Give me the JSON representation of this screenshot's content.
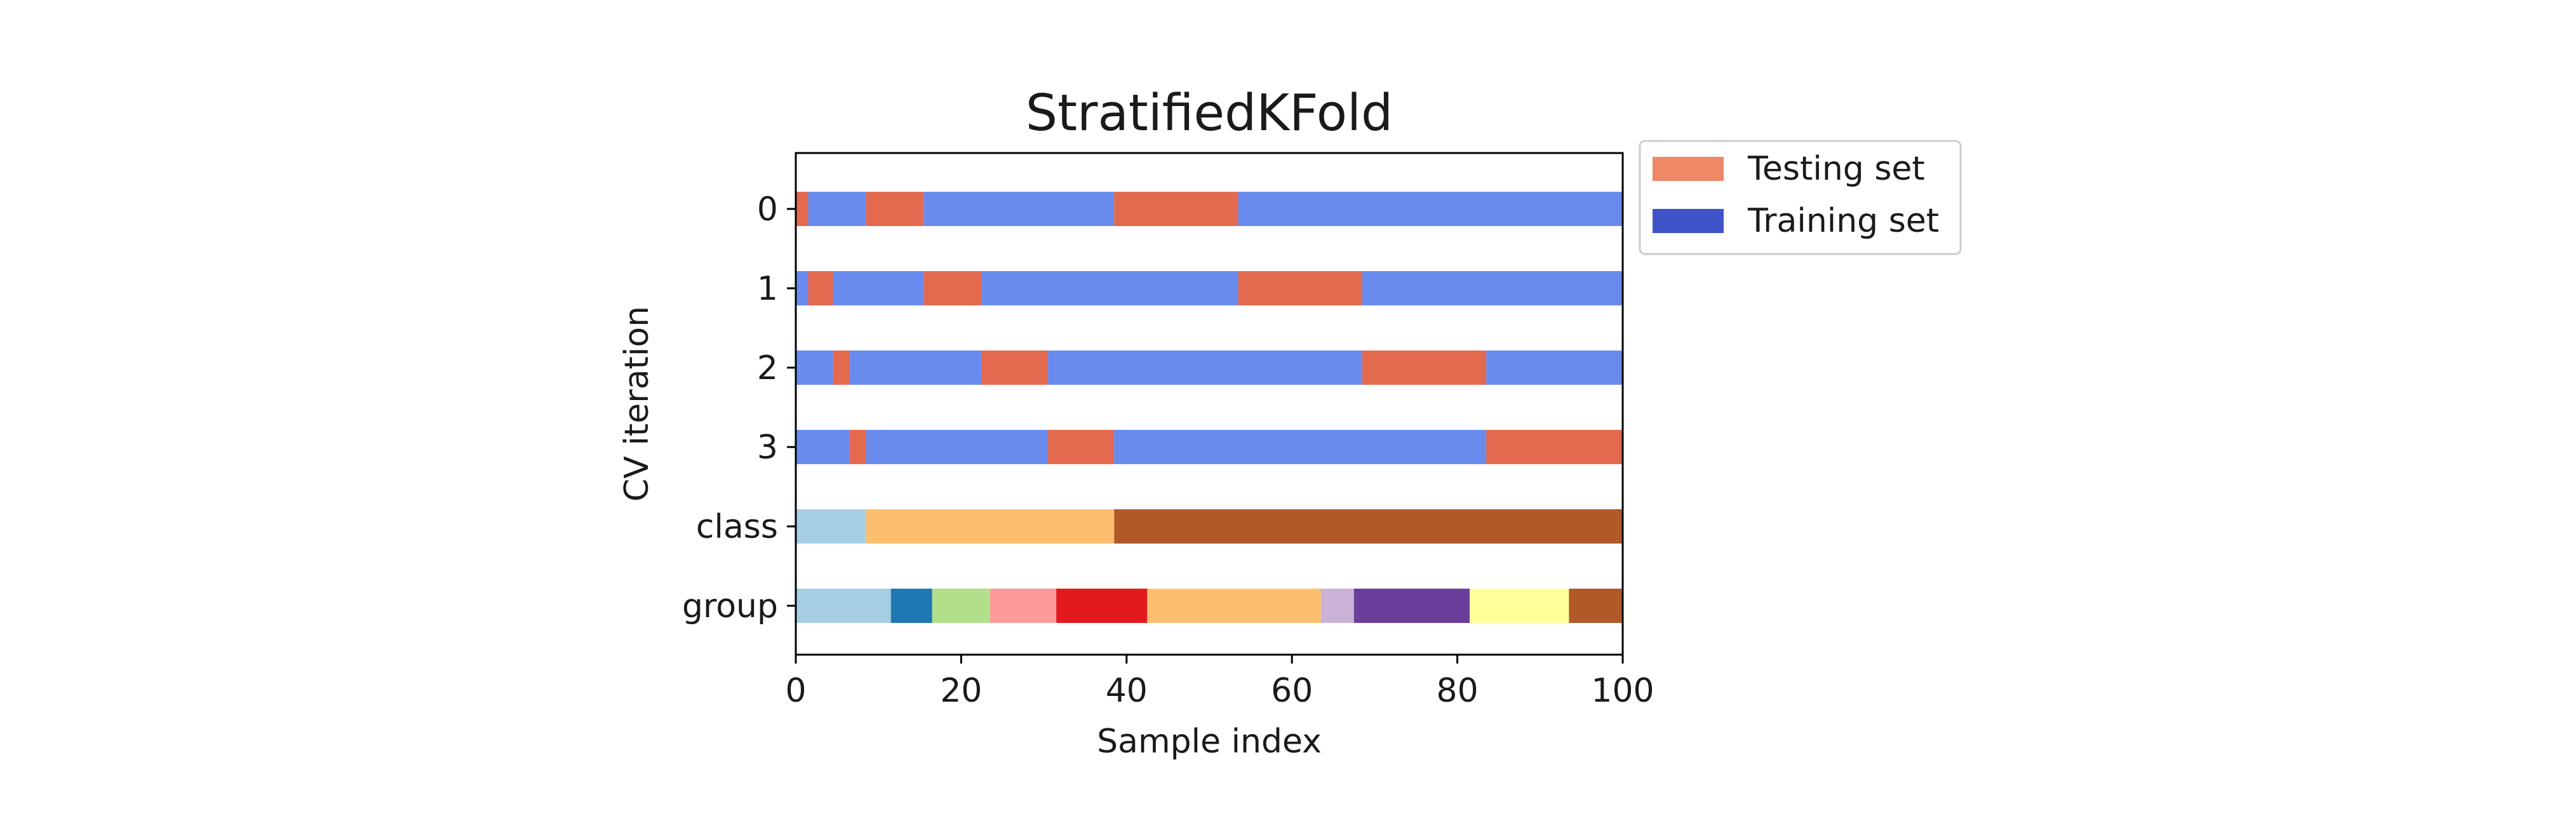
{
  "chart_data": {
    "type": "bar",
    "orientation": "horizontal",
    "title": "StratifiedKFold",
    "xlabel": "Sample index",
    "ylabel": "CV iteration",
    "xlim": [
      0,
      100
    ],
    "xticks": [
      "0",
      "20",
      "40",
      "60",
      "80",
      "100"
    ],
    "yticklabels": [
      "0",
      "1",
      "2",
      "3",
      "class",
      "group"
    ],
    "grid": false,
    "legend": {
      "placement": "outside upper right",
      "entries": [
        {
          "label": "Testing set",
          "color": "#ee8866"
        },
        {
          "label": "Training set",
          "color": "#3f53c8"
        }
      ]
    },
    "colors": {
      "test": "#e3694f",
      "train": "#6a8bee"
    },
    "rows": [
      {
        "label": "0",
        "segments": [
          {
            "start": 0,
            "end": 1.5,
            "set": "test"
          },
          {
            "start": 1.5,
            "end": 8.5,
            "set": "train"
          },
          {
            "start": 8.5,
            "end": 15.5,
            "set": "test"
          },
          {
            "start": 15.5,
            "end": 38.5,
            "set": "train"
          },
          {
            "start": 38.5,
            "end": 53.5,
            "set": "test"
          },
          {
            "start": 53.5,
            "end": 100,
            "set": "train"
          }
        ]
      },
      {
        "label": "1",
        "segments": [
          {
            "start": 0,
            "end": 1.5,
            "set": "train"
          },
          {
            "start": 1.5,
            "end": 4.5,
            "set": "test"
          },
          {
            "start": 4.5,
            "end": 15.5,
            "set": "train"
          },
          {
            "start": 15.5,
            "end": 22.5,
            "set": "test"
          },
          {
            "start": 22.5,
            "end": 53.5,
            "set": "train"
          },
          {
            "start": 53.5,
            "end": 68.5,
            "set": "test"
          },
          {
            "start": 68.5,
            "end": 100,
            "set": "train"
          }
        ]
      },
      {
        "label": "2",
        "segments": [
          {
            "start": 0,
            "end": 4.5,
            "set": "train"
          },
          {
            "start": 4.5,
            "end": 6.5,
            "set": "test"
          },
          {
            "start": 6.5,
            "end": 22.5,
            "set": "train"
          },
          {
            "start": 22.5,
            "end": 30.5,
            "set": "test"
          },
          {
            "start": 30.5,
            "end": 68.5,
            "set": "train"
          },
          {
            "start": 68.5,
            "end": 83.5,
            "set": "test"
          },
          {
            "start": 83.5,
            "end": 100,
            "set": "train"
          }
        ]
      },
      {
        "label": "3",
        "segments": [
          {
            "start": 0,
            "end": 6.5,
            "set": "train"
          },
          {
            "start": 6.5,
            "end": 8.5,
            "set": "test"
          },
          {
            "start": 8.5,
            "end": 30.5,
            "set": "train"
          },
          {
            "start": 30.5,
            "end": 38.5,
            "set": "test"
          },
          {
            "start": 38.5,
            "end": 83.5,
            "set": "train"
          },
          {
            "start": 83.5,
            "end": 100,
            "set": "test"
          }
        ]
      },
      {
        "label": "class",
        "segments": [
          {
            "start": 0,
            "end": 8.5,
            "color": "#a6cee3"
          },
          {
            "start": 8.5,
            "end": 38.5,
            "color": "#fdbf6f"
          },
          {
            "start": 38.5,
            "end": 100,
            "color": "#b15928"
          }
        ]
      },
      {
        "label": "group",
        "segments": [
          {
            "start": 0,
            "end": 11.5,
            "color": "#a6cee3"
          },
          {
            "start": 11.5,
            "end": 16.5,
            "color": "#1f78b4"
          },
          {
            "start": 16.5,
            "end": 23.5,
            "color": "#b2df8a"
          },
          {
            "start": 23.5,
            "end": 31.5,
            "color": "#fb9a99"
          },
          {
            "start": 31.5,
            "end": 42.5,
            "color": "#e31a1c"
          },
          {
            "start": 42.5,
            "end": 63.5,
            "color": "#fdbf6f"
          },
          {
            "start": 63.5,
            "end": 67.5,
            "color": "#cab2d6"
          },
          {
            "start": 67.5,
            "end": 81.5,
            "color": "#6a3d9a"
          },
          {
            "start": 81.5,
            "end": 93.5,
            "color": "#ffff99"
          },
          {
            "start": 93.5,
            "end": 100,
            "color": "#b15928"
          }
        ]
      }
    ]
  }
}
